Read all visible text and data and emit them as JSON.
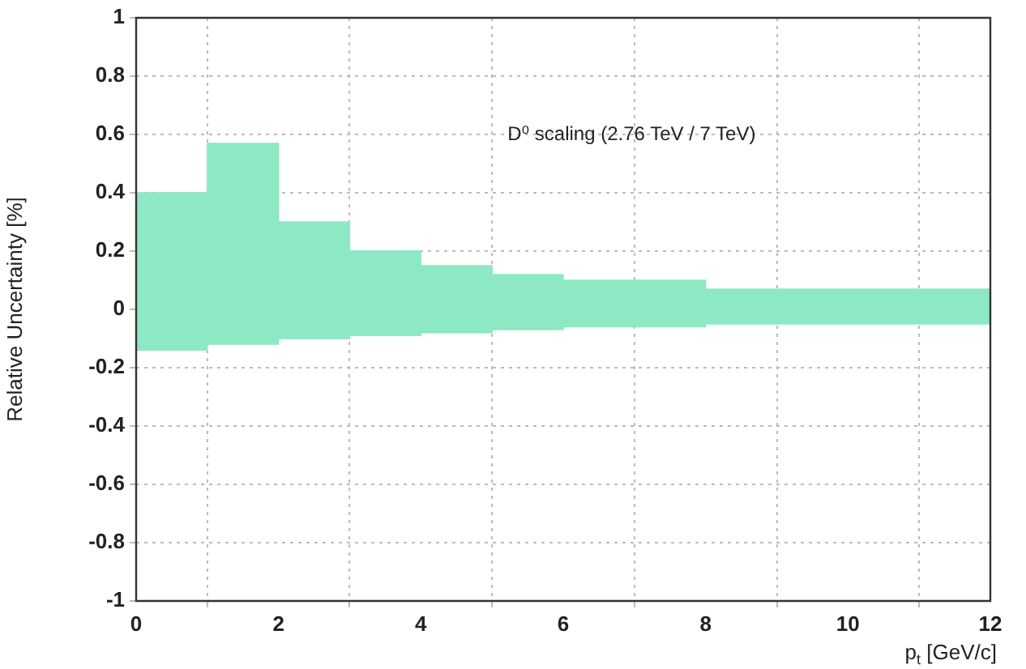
{
  "chart_data": {
    "type": "histogram",
    "bins": [
      0,
      1,
      2,
      3,
      4,
      5,
      6,
      8,
      12
    ],
    "values": [
      0.54,
      0.69,
      0.4,
      0.29,
      0.23,
      0.19,
      0.16,
      0.12
    ],
    "base": [
      -0.14,
      -0.12,
      -0.1,
      -0.09,
      -0.08,
      -0.07,
      -0.06,
      -0.05
    ],
    "color": "#8de8c4",
    "xlabel": "p$_{t}$ [GeV/c]",
    "ylabel": "Relative Uncertainty [%]",
    "annotations": [
      "D⁰ scaling (2.76 TeV / 7 TeV)"
    ],
    "xlim": [
      0,
      12
    ],
    "xticks": [
      0,
      2,
      4,
      6,
      8,
      10,
      12
    ],
    "ylim": [
      -1,
      1
    ],
    "yticks": [
      -1,
      -0.8,
      -0.6,
      -0.4,
      -0.2,
      0,
      0.2,
      0.4,
      0.6,
      0.8,
      1
    ],
    "grid": true,
    "legend": false
  }
}
